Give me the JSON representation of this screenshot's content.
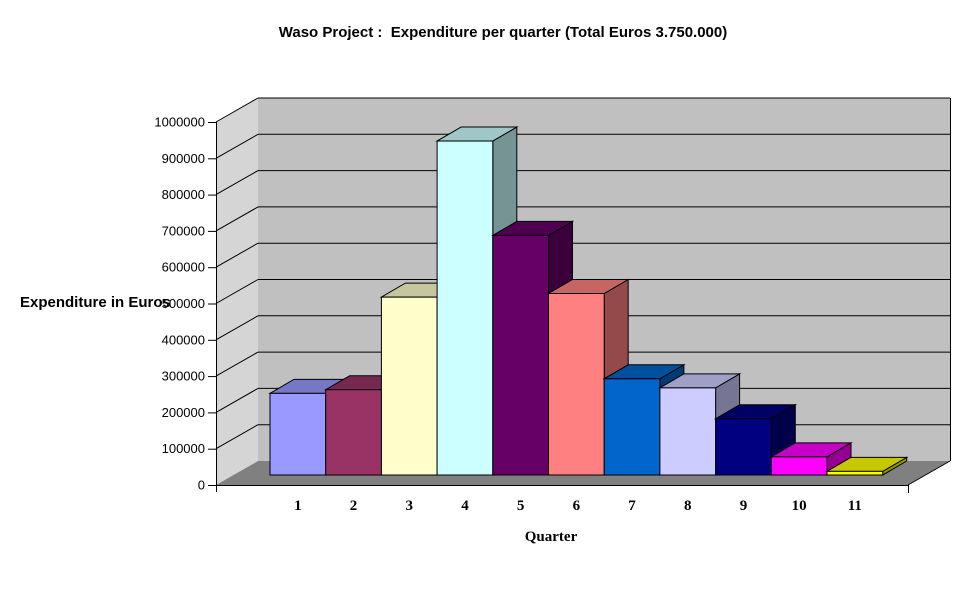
{
  "title": "Waso Project :  Expenditure per quarter (Total Euros 3.750.000)",
  "y_axis": {
    "title": "Expenditure in Euros",
    "tick_labels": [
      "0",
      "100000",
      "200000",
      "300000",
      "400000",
      "500000",
      "600000",
      "700000",
      "800000",
      "900000",
      "1000000"
    ]
  },
  "x_axis": {
    "title": "Quarter",
    "labels": [
      "1",
      "2",
      "3",
      "4",
      "5",
      "6",
      "7",
      "8",
      "9",
      "10",
      "11"
    ]
  },
  "chart_data": {
    "type": "bar",
    "projection": "3d",
    "title": "Waso Project :  Expenditure per quarter (Total Euros 3.750.000)",
    "xlabel": "Quarter",
    "ylabel": "Expenditure in Euros",
    "categories": [
      "1",
      "2",
      "3",
      "4",
      "5",
      "6",
      "7",
      "8",
      "9",
      "10",
      "11"
    ],
    "values": [
      225000,
      235000,
      490000,
      920000,
      660000,
      500000,
      265000,
      240000,
      155000,
      50000,
      10000
    ],
    "total": 3750000,
    "ylim": [
      0,
      1000000
    ],
    "y_tick_step": 100000,
    "y_tick_labels": [
      "0",
      "100000",
      "200000",
      "300000",
      "400000",
      "500000",
      "600000",
      "700000",
      "800000",
      "900000",
      "1000000"
    ],
    "grid": true,
    "legend": "none",
    "bar_colors": [
      "#9999FF",
      "#993366",
      "#FFFFCC",
      "#CCFFFF",
      "#660066",
      "#FF8080",
      "#0066CC",
      "#CCCCFF",
      "#000080",
      "#FF00FF",
      "#FFFF00"
    ],
    "wall_color": "#C0C0C0",
    "side_wall_color": "#D5D5D5",
    "floor_color": "#808080",
    "background_color": "#FFFFFF",
    "gridline_color": "#000000",
    "axis_color": "#000000"
  }
}
